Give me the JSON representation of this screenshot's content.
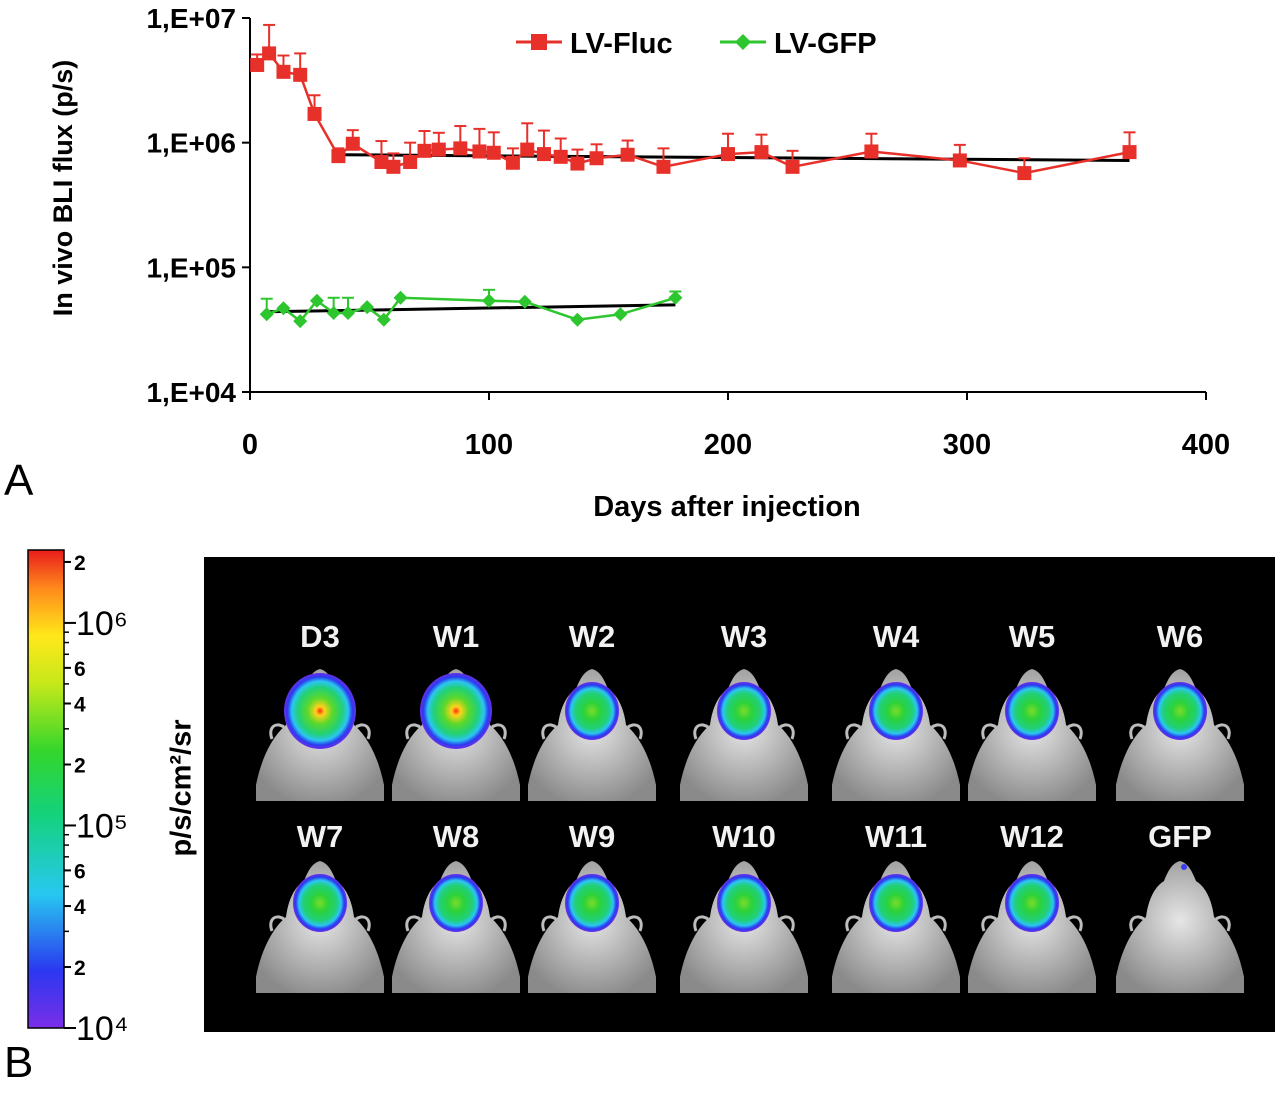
{
  "panel_a": {
    "letter": "A",
    "chart_data": {
      "type": "line",
      "xlabel": "Days after injection",
      "ylabel": "In vivo BLI flux (p/s)",
      "xlim": [
        0,
        400
      ],
      "ylim": [
        10000,
        10000000
      ],
      "yscale": "log",
      "x_ticks": [
        "0",
        "100",
        "200",
        "300",
        "400"
      ],
      "y_ticks": [
        "1,E+04",
        "1,E+05",
        "1,E+06",
        "1,E+07"
      ],
      "legend_placement": "top-center",
      "series": [
        {
          "name": "LV-Fluc",
          "color": "#e8302a",
          "marker": "square",
          "x": [
            3,
            8,
            14,
            21,
            27,
            37,
            43,
            55,
            60,
            67,
            73,
            79,
            88,
            96,
            102,
            110,
            116,
            123,
            130,
            137,
            145,
            158,
            173,
            200,
            214,
            227,
            260,
            297,
            324,
            368
          ],
          "y": [
            4200000,
            5200000,
            3700000,
            3500000,
            1700000,
            780000,
            980000,
            700000,
            640000,
            700000,
            860000,
            880000,
            900000,
            850000,
            830000,
            690000,
            880000,
            810000,
            770000,
            680000,
            750000,
            800000,
            640000,
            810000,
            840000,
            640000,
            850000,
            720000,
            570000,
            840000
          ],
          "y_err_upper": [
            900000,
            3600000,
            1300000,
            1700000,
            700000,
            120000,
            280000,
            330000,
            180000,
            300000,
            380000,
            320000,
            460000,
            440000,
            380000,
            210000,
            550000,
            440000,
            310000,
            200000,
            220000,
            240000,
            260000,
            370000,
            320000,
            220000,
            330000,
            240000,
            180000,
            370000
          ]
        },
        {
          "name": "LV-GFP",
          "color": "#2ec62e",
          "marker": "diamond",
          "x": [
            7,
            14,
            21,
            28,
            35,
            41,
            49,
            56,
            63,
            100,
            115,
            137,
            155,
            178
          ],
          "y": [
            42000,
            47000,
            37000,
            54000,
            43000,
            43000,
            48000,
            38000,
            57000,
            54000,
            53000,
            38000,
            42000,
            57000
          ],
          "y_err_upper": [
            14000,
            0,
            0,
            0,
            14000,
            14000,
            0,
            0,
            0,
            12000,
            0,
            0,
            0,
            7000
          ]
        }
      ],
      "trend_lines": [
        {
          "series": "LV-Fluc",
          "color": "#000000",
          "x": [
            37,
            368
          ],
          "y": [
            800000,
            720000
          ]
        },
        {
          "series": "LV-GFP",
          "color": "#000000",
          "x": [
            7,
            178
          ],
          "y": [
            44000,
            50000
          ]
        }
      ]
    }
  },
  "panel_b": {
    "letter": "B",
    "colorbar": {
      "unit_label": "p/s/cm²/sr",
      "tick_labels": [
        "2",
        "10⁶",
        "6",
        "4",
        "2",
        "10⁵",
        "6",
        "4",
        "2",
        "10⁴"
      ],
      "major_ticks": [
        "10⁶",
        "10⁵",
        "10⁴"
      ]
    },
    "rows": [
      [
        {
          "label": "D3",
          "signal": 1.0
        },
        {
          "label": "W1",
          "signal": 1.0
        },
        {
          "label": "W2",
          "signal": 0.55
        },
        {
          "label": "W3",
          "signal": 0.55
        },
        {
          "label": "W4",
          "signal": 0.55
        },
        {
          "label": "W5",
          "signal": 0.55
        },
        {
          "label": "W6",
          "signal": 0.6
        }
      ],
      [
        {
          "label": "W7",
          "signal": 0.5
        },
        {
          "label": "W8",
          "signal": 0.5
        },
        {
          "label": "W9",
          "signal": 0.5
        },
        {
          "label": "W10",
          "signal": 0.5
        },
        {
          "label": "W11",
          "signal": 0.5
        },
        {
          "label": "W12",
          "signal": 0.5
        },
        {
          "label": "GFP",
          "signal": 0
        }
      ]
    ]
  }
}
